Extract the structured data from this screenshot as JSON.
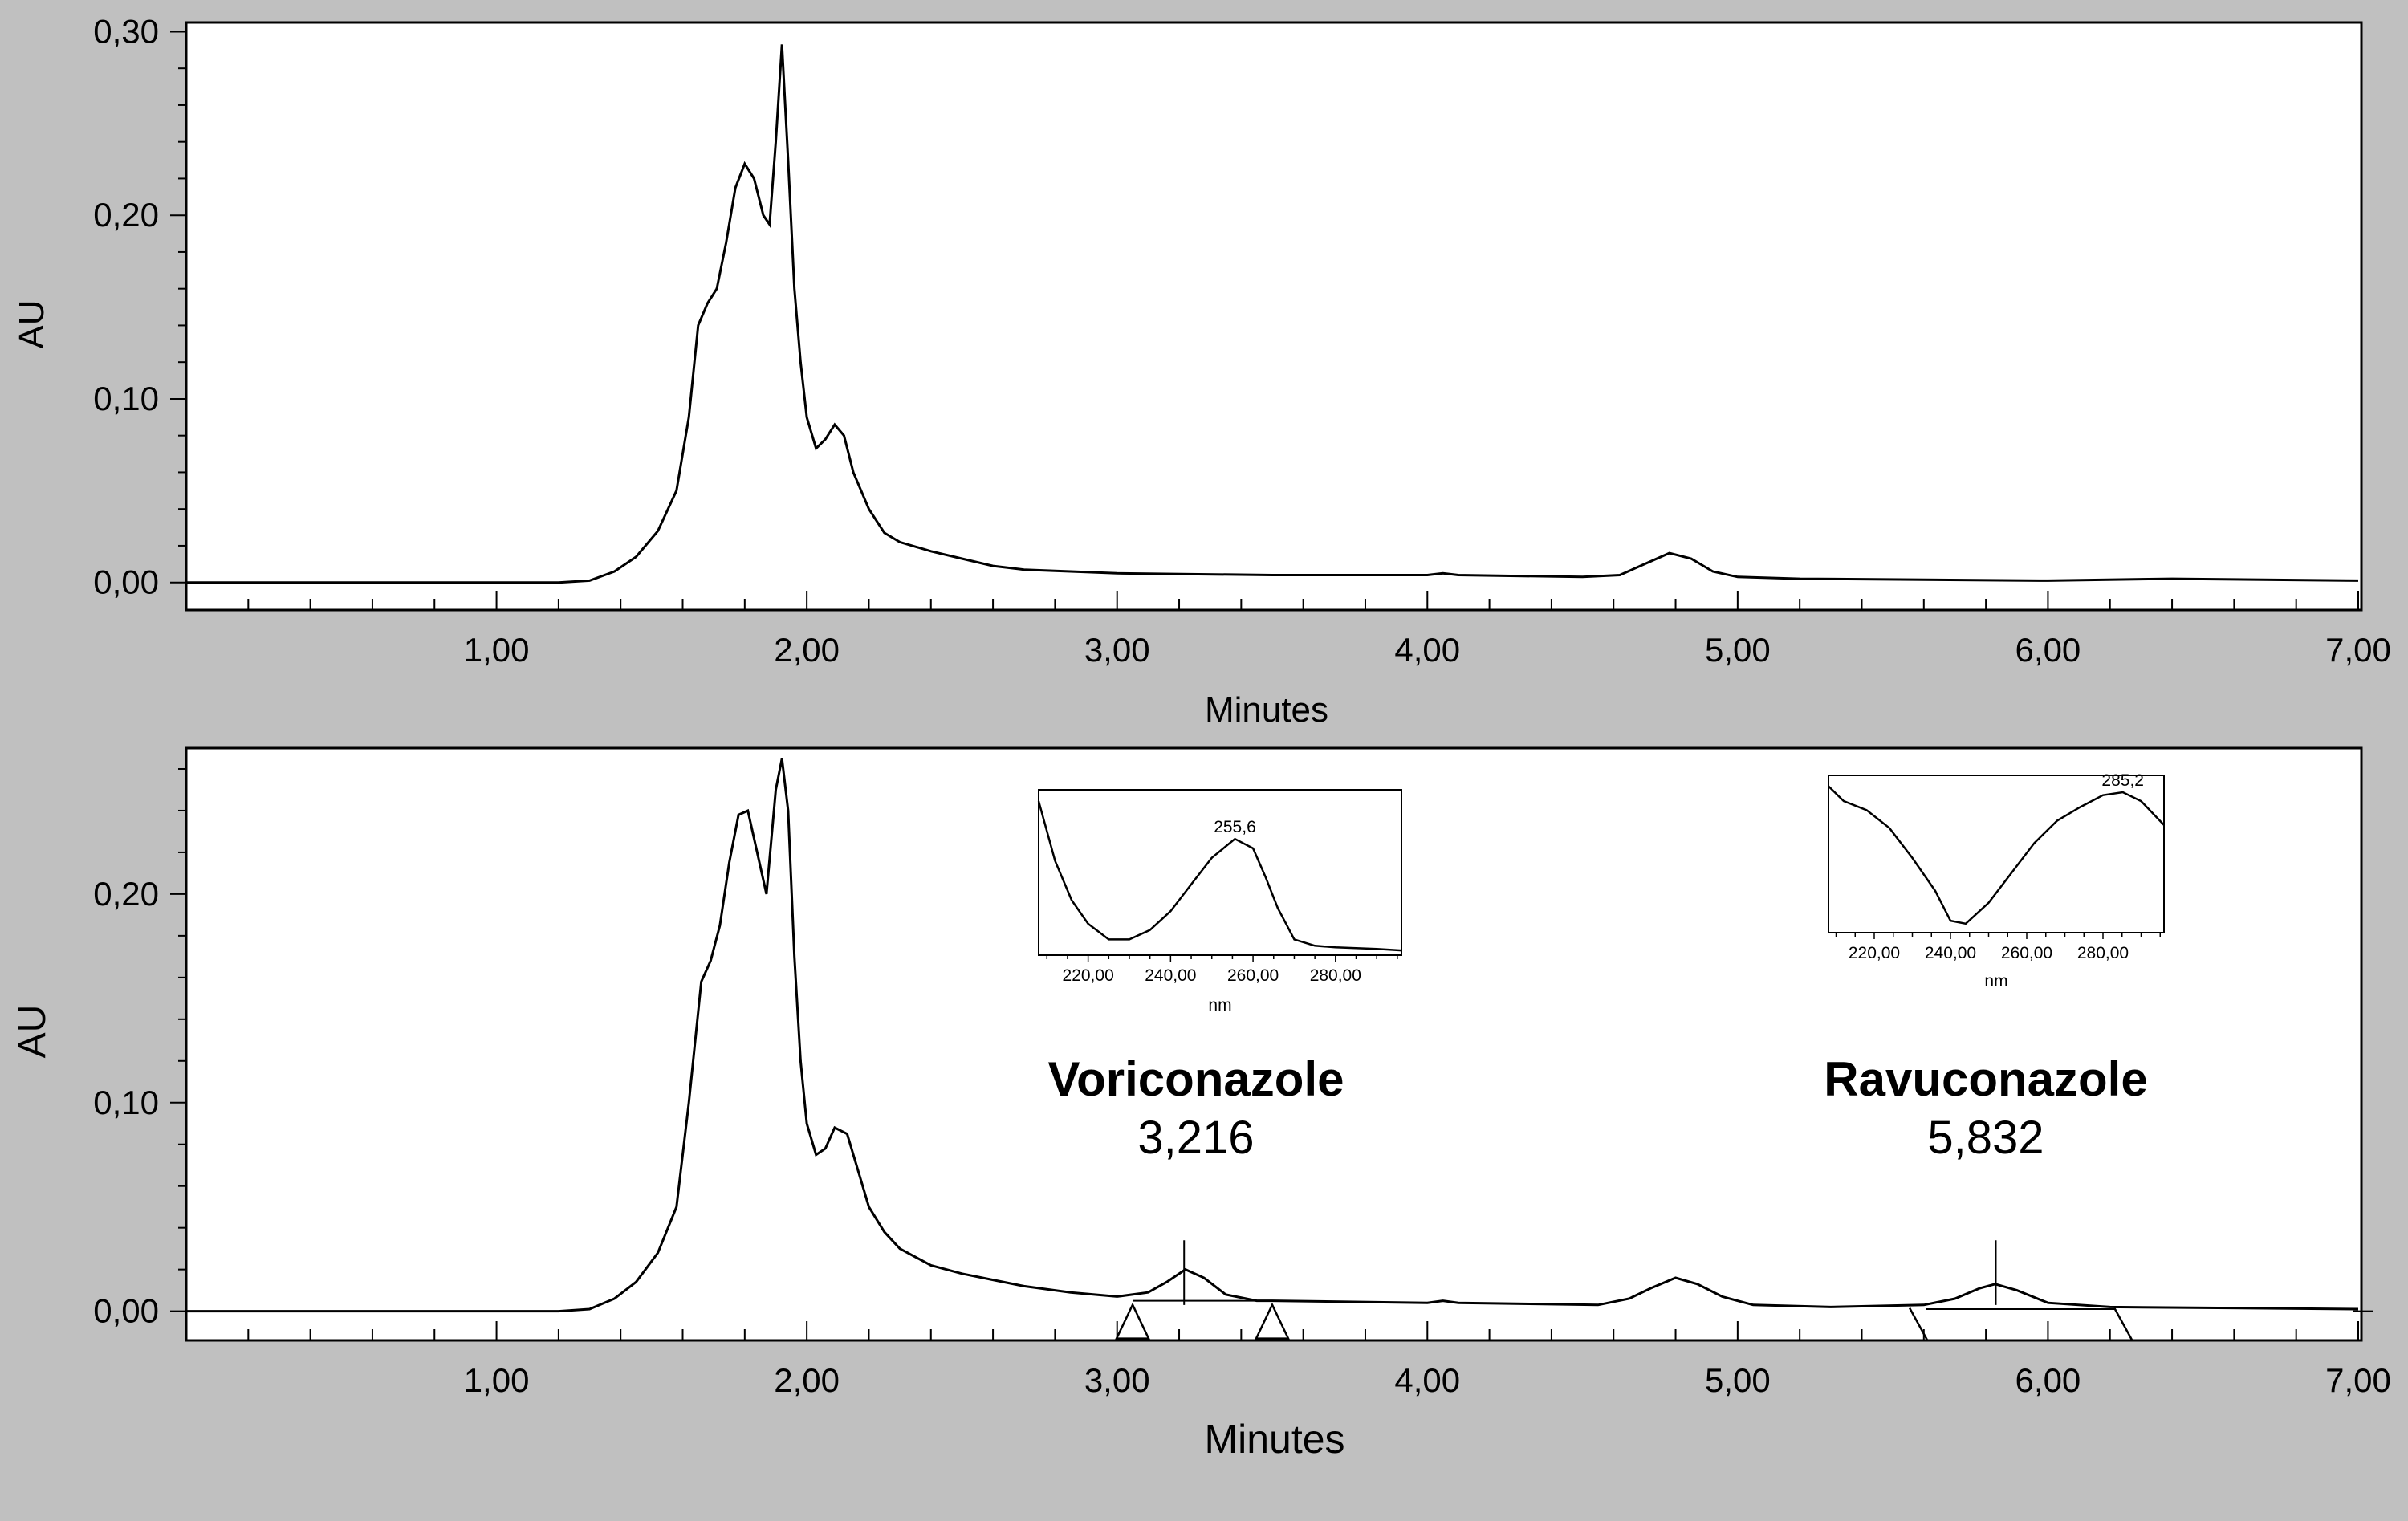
{
  "chart_data": [
    {
      "type": "line",
      "title": "",
      "xlabel": "Minutes",
      "ylabel": "AU",
      "xlim": [
        0,
        7
      ],
      "ylim": [
        -0.015,
        0.305
      ],
      "x_ticks": [
        1,
        2,
        3,
        4,
        5,
        6,
        7
      ],
      "x_tick_labels": [
        "1,00",
        "2,00",
        "3,00",
        "4,00",
        "5,00",
        "6,00",
        "7,00"
      ],
      "y_ticks": [
        0,
        0.1,
        0.2,
        0.3
      ],
      "y_tick_labels": [
        "0,00",
        "0,10",
        "0,20",
        "0,30"
      ],
      "grid": false,
      "series": [
        {
          "x": [
            0.0,
            1.0,
            1.2,
            1.3,
            1.38,
            1.45,
            1.52,
            1.58,
            1.62,
            1.65,
            1.68,
            1.71,
            1.74,
            1.77,
            1.8,
            1.83,
            1.86,
            1.88,
            1.9,
            1.92,
            1.94,
            1.96,
            1.98,
            2.0,
            2.03,
            2.06,
            2.09,
            2.12,
            2.15,
            2.2,
            2.25,
            2.3,
            2.4,
            2.5,
            2.6,
            2.7,
            2.85,
            3.0,
            3.5,
            4.0,
            4.05,
            4.1,
            4.5,
            4.62,
            4.7,
            4.78,
            4.85,
            4.92,
            5.0,
            5.2,
            6.0,
            6.4,
            7.0
          ],
          "y": [
            0.0,
            0.0,
            0.0,
            0.001,
            0.006,
            0.014,
            0.028,
            0.05,
            0.09,
            0.14,
            0.152,
            0.16,
            0.185,
            0.215,
            0.228,
            0.22,
            0.2,
            0.195,
            0.24,
            0.293,
            0.23,
            0.16,
            0.12,
            0.09,
            0.073,
            0.078,
            0.086,
            0.08,
            0.06,
            0.04,
            0.027,
            0.022,
            0.017,
            0.013,
            0.009,
            0.007,
            0.006,
            0.005,
            0.004,
            0.004,
            0.005,
            0.004,
            0.003,
            0.004,
            0.01,
            0.016,
            0.013,
            0.006,
            0.003,
            0.002,
            0.001,
            0.002,
            0.001
          ]
        }
      ]
    },
    {
      "type": "line",
      "title": "",
      "xlabel": "Minutes",
      "ylabel": "AU",
      "xlim": [
        0,
        7
      ],
      "ylim": [
        -0.014,
        0.27
      ],
      "x_ticks": [
        1,
        2,
        3,
        4,
        5,
        6,
        7
      ],
      "x_tick_labels": [
        "1,00",
        "2,00",
        "3,00",
        "4,00",
        "5,00",
        "6,00",
        "7,00"
      ],
      "y_ticks": [
        0,
        0.1,
        0.2
      ],
      "y_tick_labels": [
        "0,00",
        "0,10",
        "0,20"
      ],
      "grid": false,
      "series": [
        {
          "x": [
            0.0,
            1.0,
            1.2,
            1.3,
            1.38,
            1.45,
            1.52,
            1.58,
            1.62,
            1.66,
            1.69,
            1.72,
            1.75,
            1.78,
            1.81,
            1.84,
            1.87,
            1.9,
            1.92,
            1.94,
            1.96,
            1.98,
            2.0,
            2.03,
            2.06,
            2.09,
            2.13,
            2.17,
            2.2,
            2.25,
            2.3,
            2.4,
            2.5,
            2.6,
            2.7,
            2.85,
            3.0,
            3.1,
            3.16,
            3.22,
            3.28,
            3.35,
            3.45,
            3.5,
            4.0,
            4.05,
            4.1,
            4.55,
            4.65,
            4.72,
            4.8,
            4.87,
            4.95,
            5.05,
            5.3,
            5.6,
            5.7,
            5.78,
            5.83,
            5.9,
            6.0,
            6.2,
            7.0
          ],
          "y": [
            0.0,
            0.0,
            0.0,
            0.001,
            0.006,
            0.014,
            0.028,
            0.05,
            0.1,
            0.158,
            0.168,
            0.185,
            0.215,
            0.238,
            0.24,
            0.22,
            0.2,
            0.25,
            0.265,
            0.24,
            0.17,
            0.12,
            0.09,
            0.075,
            0.078,
            0.088,
            0.085,
            0.065,
            0.05,
            0.038,
            0.03,
            0.022,
            0.018,
            0.015,
            0.012,
            0.009,
            0.007,
            0.009,
            0.014,
            0.02,
            0.016,
            0.008,
            0.005,
            0.005,
            0.004,
            0.005,
            0.004,
            0.003,
            0.006,
            0.011,
            0.016,
            0.013,
            0.007,
            0.003,
            0.002,
            0.003,
            0.006,
            0.011,
            0.013,
            0.01,
            0.004,
            0.002,
            0.001
          ]
        }
      ],
      "annotations": [
        {
          "name": "Voriconazole",
          "value": "3,216",
          "retention_time": 3.216
        },
        {
          "name": "Ravuconazole",
          "value": "5,832",
          "retention_time": 5.832
        }
      ],
      "integration_markers": [
        {
          "type": "triangle",
          "x": 3.05
        },
        {
          "type": "triangle",
          "x": 3.5
        },
        {
          "type": "slash",
          "x": 5.58
        },
        {
          "type": "slash",
          "x": 6.24
        }
      ],
      "insets": [
        {
          "type": "line",
          "xlabel": "nm",
          "xlim": [
            208,
            296
          ],
          "x_ticks": [
            220,
            240,
            260,
            280
          ],
          "x_tick_labels": [
            "220,00",
            "240,00",
            "260,00",
            "280,00"
          ],
          "peak_label": "255,6",
          "peak_x": 255.6,
          "ylim": [
            0,
            1
          ],
          "series": [
            {
              "x": [
                208,
                212,
                216,
                220,
                225,
                230,
                235,
                240,
                245,
                250,
                255.6,
                260,
                263,
                266,
                270,
                275,
                280,
                290,
                296
              ],
              "y": [
                0.98,
                0.6,
                0.35,
                0.2,
                0.1,
                0.1,
                0.16,
                0.28,
                0.45,
                0.62,
                0.74,
                0.68,
                0.5,
                0.3,
                0.1,
                0.06,
                0.05,
                0.04,
                0.03
              ]
            }
          ]
        },
        {
          "type": "line",
          "xlabel": "nm",
          "xlim": [
            208,
            296
          ],
          "x_ticks": [
            220,
            240,
            260,
            280
          ],
          "x_tick_labels": [
            "220,00",
            "240,00",
            "260,00",
            "280,00"
          ],
          "peak_label": "285,2",
          "peak_x": 285.2,
          "ylim": [
            0,
            1
          ],
          "series": [
            {
              "x": [
                208,
                212,
                218,
                224,
                230,
                236,
                240,
                244,
                250,
                256,
                262,
                268,
                274,
                280,
                285.2,
                290,
                296
              ],
              "y": [
                0.98,
                0.88,
                0.82,
                0.7,
                0.5,
                0.28,
                0.08,
                0.06,
                0.2,
                0.4,
                0.6,
                0.75,
                0.84,
                0.92,
                0.94,
                0.88,
                0.72
              ]
            }
          ]
        }
      ]
    }
  ]
}
